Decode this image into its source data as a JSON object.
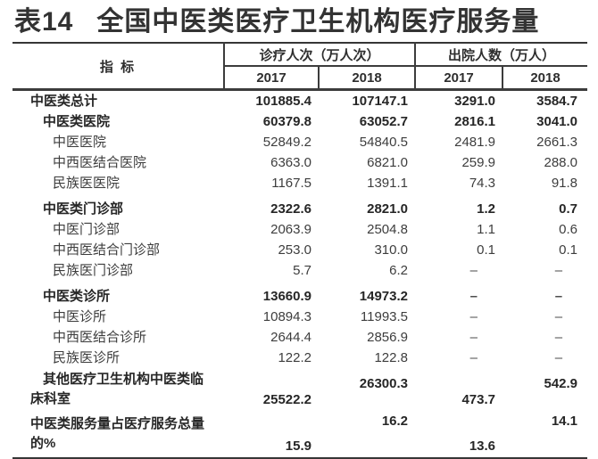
{
  "title": {
    "tag": "表14",
    "text": "全国中医类医疗卫生机构医疗服务量"
  },
  "header": {
    "indicator": "指 标",
    "groups": [
      {
        "label": "诊疗人次（万人次）",
        "years": [
          "2017",
          "2018"
        ]
      },
      {
        "label": "出院人数（万人）",
        "years": [
          "2017",
          "2018"
        ]
      }
    ]
  },
  "rows": [
    {
      "label": "中医类总计",
      "values": [
        "101885.4",
        "107147.1",
        "3291.0",
        "3584.7"
      ]
    },
    {
      "label": "中医类医院",
      "values": [
        "60379.8",
        "63052.7",
        "2816.1",
        "3041.0"
      ]
    },
    {
      "label": "中医医院",
      "values": [
        "52849.2",
        "54840.5",
        "2481.9",
        "2661.3"
      ]
    },
    {
      "label": "中西医结合医院",
      "values": [
        "6363.0",
        "6821.0",
        "259.9",
        "288.0"
      ]
    },
    {
      "label": "民族医医院",
      "values": [
        "1167.5",
        "1391.1",
        "74.3",
        "91.8"
      ]
    },
    {
      "label": "中医类门诊部",
      "values": [
        "2322.6",
        "2821.0",
        "1.2",
        "0.7"
      ]
    },
    {
      "label": "中医门诊部",
      "values": [
        "2063.9",
        "2504.8",
        "1.1",
        "0.6"
      ]
    },
    {
      "label": "中西医结合门诊部",
      "values": [
        "253.0",
        "310.0",
        "0.1",
        "0.1"
      ]
    },
    {
      "label": "民族医门诊部",
      "values": [
        "5.7",
        "6.2",
        "–",
        "–"
      ]
    },
    {
      "label": "中医类诊所",
      "values": [
        "13660.9",
        "14973.2",
        "–",
        "–"
      ]
    },
    {
      "label": "中医诊所",
      "values": [
        "10894.3",
        "11993.5",
        "–",
        "–"
      ]
    },
    {
      "label": "中西医结合诊所",
      "values": [
        "2644.4",
        "2856.9",
        "–",
        "–"
      ]
    },
    {
      "label": "民族医诊所",
      "values": [
        "122.2",
        "122.8",
        "–",
        "–"
      ]
    },
    {
      "label": "其他医疗卫生机构中医类临床科室",
      "label_lines": [
        "其他医疗卫生机构中医类临",
        "床科室"
      ],
      "values": [
        "25522.2",
        "26300.3",
        "473.7",
        "542.9"
      ]
    },
    {
      "label": "中医类服务量占医疗服务总量的%",
      "label_lines": [
        "中医类服务量占医疗服务总量",
        "的%"
      ],
      "values": [
        "15.9",
        "16.2",
        "13.6",
        "14.1"
      ]
    }
  ]
}
